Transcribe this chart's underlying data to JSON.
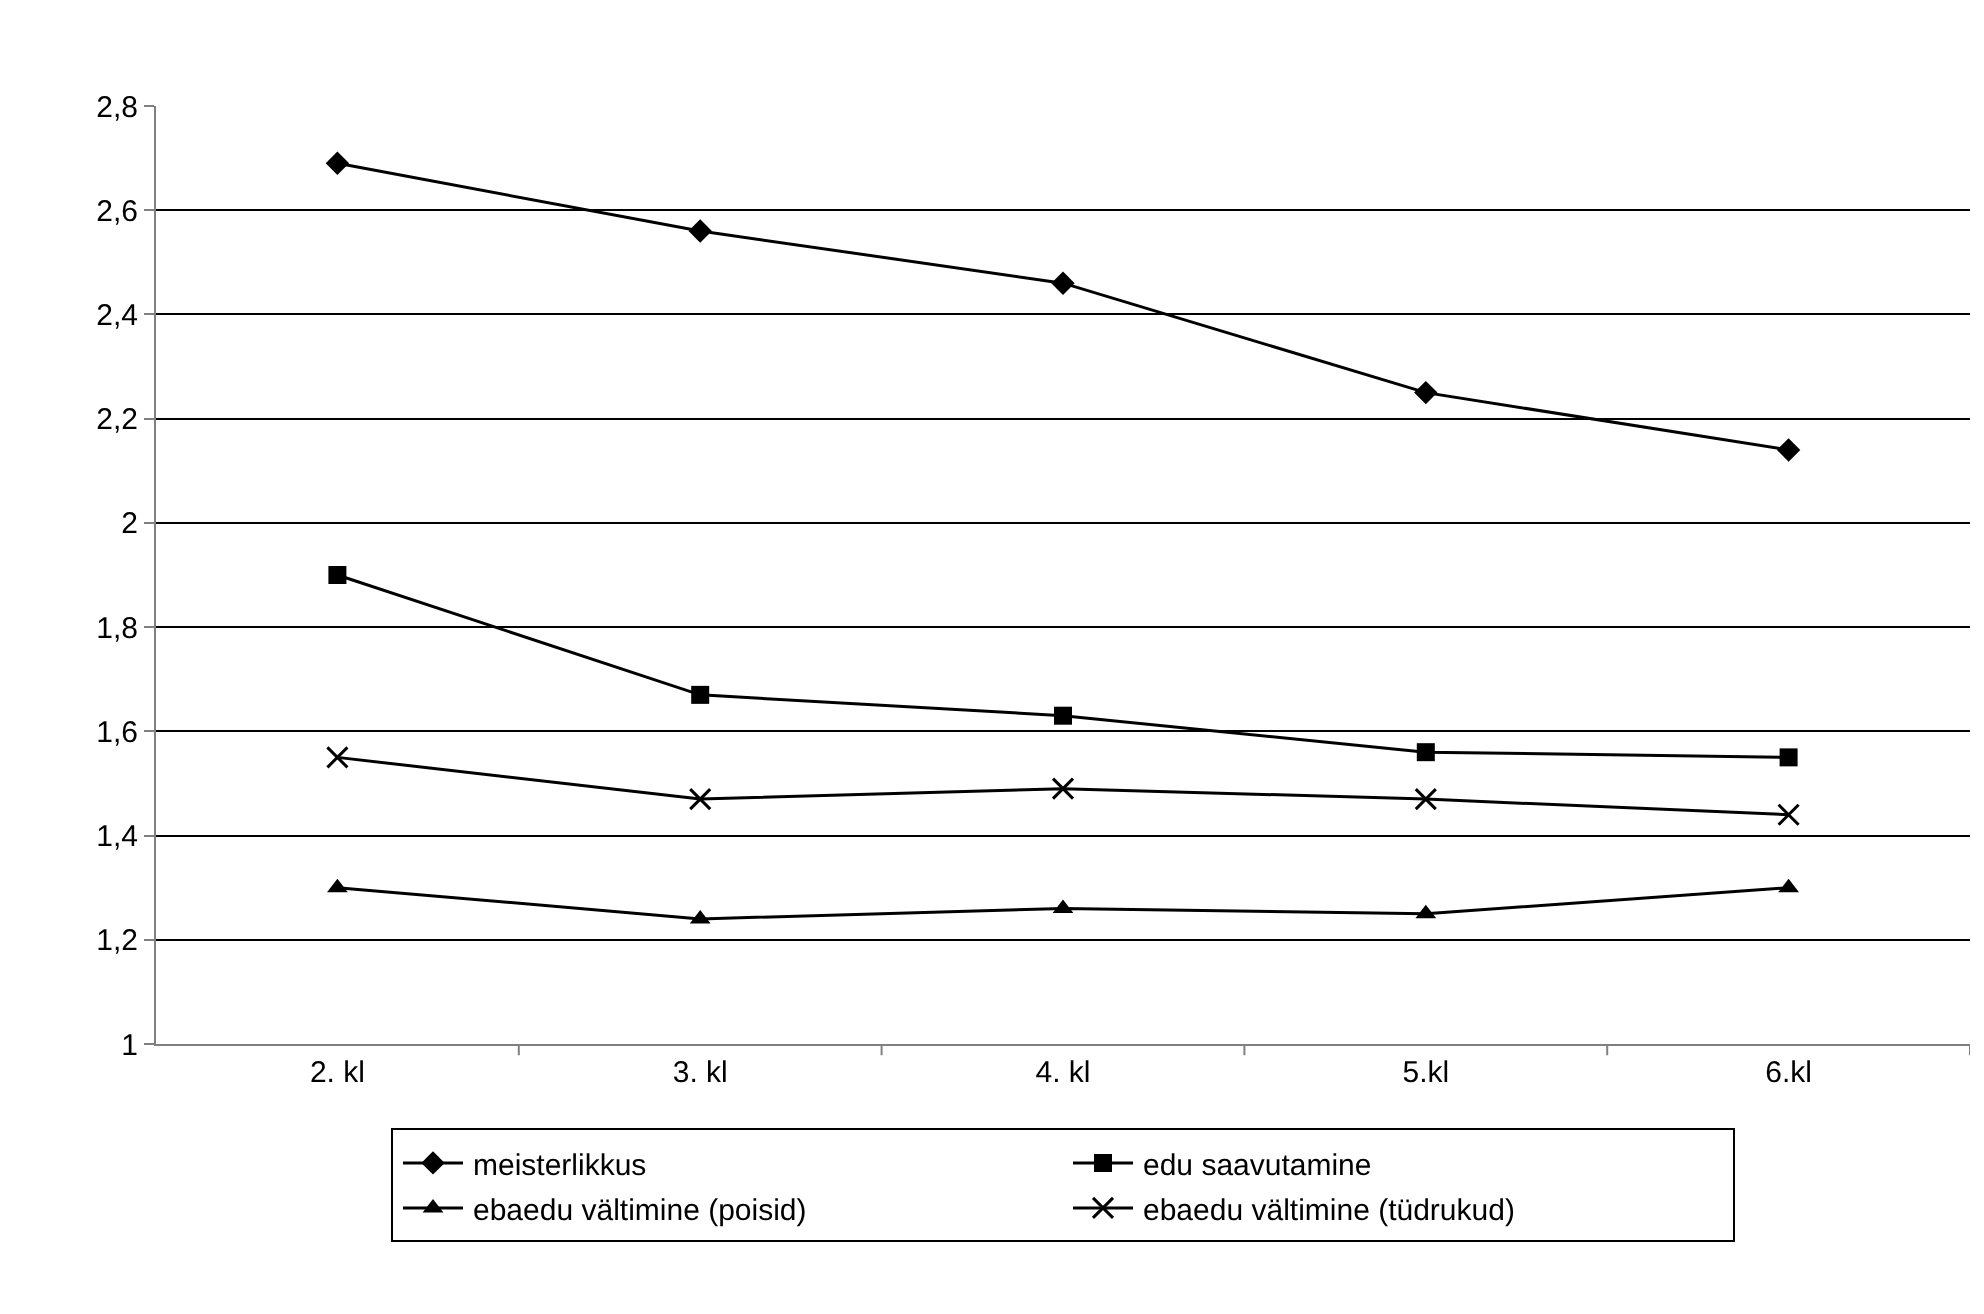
{
  "chart_data": {
    "type": "line",
    "categories": [
      "2. kl",
      "3. kl",
      "4. kl",
      "5.kl",
      "6.kl"
    ],
    "ylim": [
      1,
      2.8
    ],
    "yticks": [
      1,
      {
        "value": 1.2,
        "label": "1,2"
      },
      {
        "value": 1.4,
        "label": "1,4"
      },
      {
        "value": 1.6,
        "label": "1,6"
      },
      {
        "value": 1.8,
        "label": "1,8"
      },
      2,
      {
        "value": 2.2,
        "label": "2,2"
      },
      {
        "value": 2.4,
        "label": "2,4"
      },
      {
        "value": 2.6,
        "label": "2,6"
      },
      {
        "value": 2.8,
        "label": "2,8"
      }
    ],
    "grid": "y",
    "legend": "bottom",
    "line_style": "solid",
    "series": [
      {
        "name": "meisterlikkus",
        "color": "#000000",
        "marker": "diamond",
        "values": [
          2.69,
          2.56,
          2.46,
          2.25,
          2.14
        ]
      },
      {
        "name": "edu saavutamine",
        "color": "#000000",
        "marker": "square",
        "values": [
          1.9,
          1.67,
          1.63,
          1.56,
          1.55
        ]
      },
      {
        "name": "ebaedu vältimine (poisid)",
        "color": "#000000",
        "marker": "triangle",
        "values": [
          1.3,
          1.24,
          1.26,
          1.25,
          1.3
        ]
      },
      {
        "name": "ebaedu vältimine (tüdrukud)",
        "color": "#000000",
        "marker": "cross",
        "values": [
          1.55,
          1.47,
          1.49,
          1.47,
          1.44
        ]
      }
    ]
  }
}
